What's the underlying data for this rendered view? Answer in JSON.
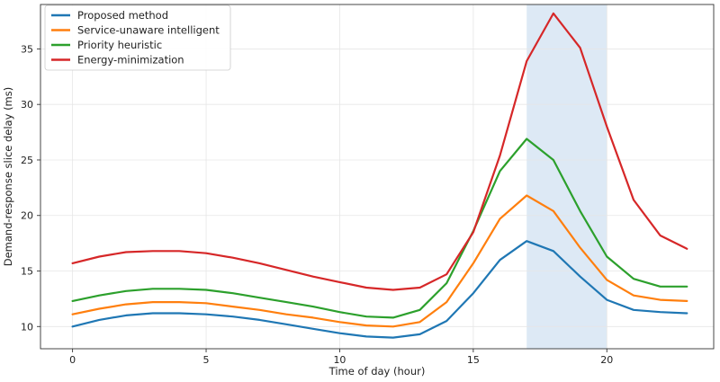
{
  "chart_data": {
    "type": "line",
    "title": "",
    "xlabel": "Time of day (hour)",
    "ylabel": "Demand-response slice delay (ms)",
    "xlim": [
      -1.2,
      24.0
    ],
    "ylim": [
      8.0,
      39.0
    ],
    "x_ticks": [
      0,
      5,
      10,
      15,
      20
    ],
    "y_ticks": [
      10,
      15,
      20,
      25,
      30,
      35
    ],
    "grid": true,
    "legend_position": "top-left",
    "highlight_band": {
      "x_start": 17,
      "x_end": 20,
      "color": "#dde9f5"
    },
    "x": [
      0,
      1,
      2,
      3,
      4,
      5,
      6,
      7,
      8,
      9,
      10,
      11,
      12,
      13,
      14,
      15,
      16,
      17,
      18,
      19,
      20,
      21,
      22,
      23
    ],
    "series": [
      {
        "name": "Proposed method",
        "color": "#1f77b4",
        "values": [
          10.0,
          10.6,
          11.0,
          11.2,
          11.2,
          11.1,
          10.9,
          10.6,
          10.2,
          9.8,
          9.4,
          9.1,
          9.0,
          9.3,
          10.5,
          13.0,
          16.0,
          17.7,
          16.8,
          14.5,
          12.4,
          11.5,
          11.3,
          11.2
        ]
      },
      {
        "name": "Service-unaware intelligent",
        "color": "#ff7f0e",
        "values": [
          11.1,
          11.6,
          12.0,
          12.2,
          12.2,
          12.1,
          11.8,
          11.5,
          11.1,
          10.8,
          10.4,
          10.1,
          10.0,
          10.4,
          12.2,
          15.7,
          19.7,
          21.8,
          20.4,
          17.1,
          14.2,
          12.8,
          12.4,
          12.3
        ]
      },
      {
        "name": "Priority heuristic",
        "color": "#2ca02c",
        "values": [
          12.3,
          12.8,
          13.2,
          13.4,
          13.4,
          13.3,
          13.0,
          12.6,
          12.2,
          11.8,
          11.3,
          10.9,
          10.8,
          11.5,
          13.9,
          18.6,
          24.0,
          26.9,
          25.0,
          20.4,
          16.3,
          14.3,
          13.6,
          13.6
        ]
      },
      {
        "name": "Energy-minimization",
        "color": "#d62728",
        "values": [
          15.7,
          16.3,
          16.7,
          16.8,
          16.8,
          16.6,
          16.2,
          15.7,
          15.1,
          14.5,
          14.0,
          13.5,
          13.3,
          13.5,
          14.7,
          18.5,
          25.4,
          33.9,
          38.2,
          35.1,
          28.0,
          21.4,
          18.2,
          17.0
        ]
      }
    ]
  }
}
